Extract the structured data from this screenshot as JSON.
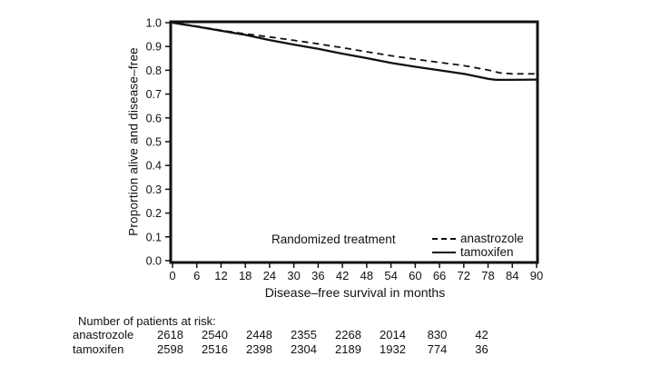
{
  "chart_data": {
    "type": "line",
    "subtype": "kaplan-meier-survival",
    "xlabel": "Disease–free survival in months",
    "ylabel": "Proportion alive and disease–free",
    "xlim": [
      0,
      90
    ],
    "ylim": [
      0.0,
      1.0
    ],
    "x_ticks": [
      0,
      6,
      12,
      18,
      24,
      30,
      36,
      42,
      48,
      54,
      60,
      66,
      72,
      78,
      84,
      90
    ],
    "y_ticks": [
      1.0,
      0.9,
      0.8,
      0.7,
      0.6,
      0.5,
      0.4,
      0.3,
      0.2,
      0.1,
      0.0
    ],
    "grid": false,
    "legend_title": "Randomized treatment",
    "legend_position": "inside-bottom-right",
    "series": [
      {
        "name": "anastrozole",
        "style": "dashed",
        "x": [
          0,
          6,
          12,
          18,
          24,
          30,
          36,
          42,
          48,
          54,
          60,
          66,
          72,
          78,
          81,
          84,
          90
        ],
        "y": [
          1.0,
          0.985,
          0.968,
          0.953,
          0.94,
          0.926,
          0.911,
          0.895,
          0.878,
          0.861,
          0.847,
          0.833,
          0.82,
          0.801,
          0.789,
          0.785,
          0.785
        ]
      },
      {
        "name": "tamoxifen",
        "style": "solid",
        "x": [
          0,
          6,
          12,
          18,
          24,
          30,
          36,
          42,
          48,
          54,
          60,
          66,
          72,
          78,
          80,
          84,
          90
        ],
        "y": [
          1.0,
          0.984,
          0.966,
          0.949,
          0.927,
          0.908,
          0.89,
          0.87,
          0.851,
          0.831,
          0.815,
          0.8,
          0.785,
          0.764,
          0.76,
          0.76,
          0.761
        ]
      }
    ]
  },
  "risk_table": {
    "title": "Number of patients at risk:",
    "months": [
      0,
      12,
      24,
      36,
      48,
      60,
      72,
      84
    ],
    "rows": [
      {
        "label": "anastrozole",
        "values": [
          "2618",
          "2540",
          "2448",
          "2355",
          "2268",
          "2014",
          "830",
          "42"
        ]
      },
      {
        "label": "tamoxifen",
        "values": [
          "2598",
          "2516",
          "2398",
          "2304",
          "2189",
          "1932",
          "774",
          "36"
        ]
      }
    ]
  },
  "colors": {
    "line": "#111111",
    "text": "#111111",
    "background": "#ffffff"
  }
}
